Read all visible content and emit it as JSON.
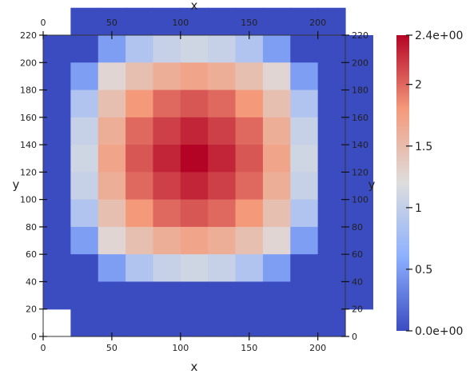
{
  "chart_data": {
    "type": "heatmap",
    "x_axis": {
      "label": "x",
      "range": [
        0,
        220
      ],
      "ticks": [
        0,
        50,
        100,
        150,
        200
      ]
    },
    "y_axis": {
      "label": "y",
      "range": [
        0,
        220
      ],
      "ticks": [
        0,
        20,
        40,
        60,
        80,
        100,
        120,
        140,
        160,
        180,
        200,
        220
      ]
    },
    "grid": false,
    "cell_size": 20,
    "cell_grid": [
      [
        null,
        0.0,
        0.0,
        0.0,
        0.0,
        0.0,
        0.0,
        0.0,
        0.0,
        0.0,
        0.0,
        null
      ],
      [
        0.0,
        0.0,
        0.49,
        0.87,
        1.03,
        1.09,
        1.03,
        0.87,
        0.49,
        0.0,
        0.0,
        0.0
      ],
      [
        0.0,
        0.49,
        1.27,
        1.47,
        1.62,
        1.7,
        1.62,
        1.47,
        1.27,
        0.49,
        0.0,
        0.0
      ],
      [
        0.0,
        0.87,
        1.47,
        1.8,
        2.0,
        2.07,
        2.0,
        1.8,
        1.47,
        0.87,
        0.0,
        0.0
      ],
      [
        0.0,
        1.03,
        1.62,
        2.0,
        2.16,
        2.27,
        2.16,
        2.0,
        1.62,
        1.03,
        0.0,
        0.0
      ],
      [
        0.0,
        1.09,
        1.7,
        2.07,
        2.27,
        2.4,
        2.27,
        2.07,
        1.7,
        1.09,
        0.0,
        0.0
      ],
      [
        0.0,
        1.03,
        1.62,
        2.0,
        2.16,
        2.27,
        2.16,
        2.0,
        1.62,
        1.03,
        0.0,
        0.0
      ],
      [
        0.0,
        0.87,
        1.47,
        1.8,
        2.0,
        2.07,
        2.0,
        1.8,
        1.47,
        0.87,
        0.0,
        0.0
      ],
      [
        0.0,
        0.49,
        1.27,
        1.47,
        1.62,
        1.7,
        1.62,
        1.47,
        1.27,
        0.49,
        0.0,
        0.0
      ],
      [
        0.0,
        0.0,
        0.49,
        0.87,
        1.03,
        1.09,
        1.03,
        0.87,
        0.49,
        0.0,
        0.0,
        0.0
      ],
      [
        0.0,
        0.0,
        0.0,
        0.0,
        0.0,
        0.0,
        0.0,
        0.0,
        0.0,
        0.0,
        0.0,
        0.0
      ],
      [
        null,
        0.0,
        0.0,
        0.0,
        0.0,
        0.0,
        0.0,
        0.0,
        0.0,
        0.0,
        0.0,
        null
      ]
    ],
    "colorbar": {
      "range": [
        0,
        2.4
      ],
      "ticks": [
        {
          "value": 2.4,
          "label": "2.4e+00"
        },
        {
          "value": 2.0,
          "label": "2"
        },
        {
          "value": 1.5,
          "label": "1.5"
        },
        {
          "value": 1.0,
          "label": "1"
        },
        {
          "value": 0.5,
          "label": "0.5"
        },
        {
          "value": 0.0,
          "label": "0.0e+00"
        }
      ],
      "colormap": "coolwarm",
      "stops": [
        [
          0.0,
          "#3b4cc0"
        ],
        [
          0.25,
          "#8db0fe"
        ],
        [
          0.5,
          "#dddddd"
        ],
        [
          0.75,
          "#f49a7b"
        ],
        [
          1.0,
          "#b40426"
        ]
      ],
      "placement": "right"
    }
  }
}
